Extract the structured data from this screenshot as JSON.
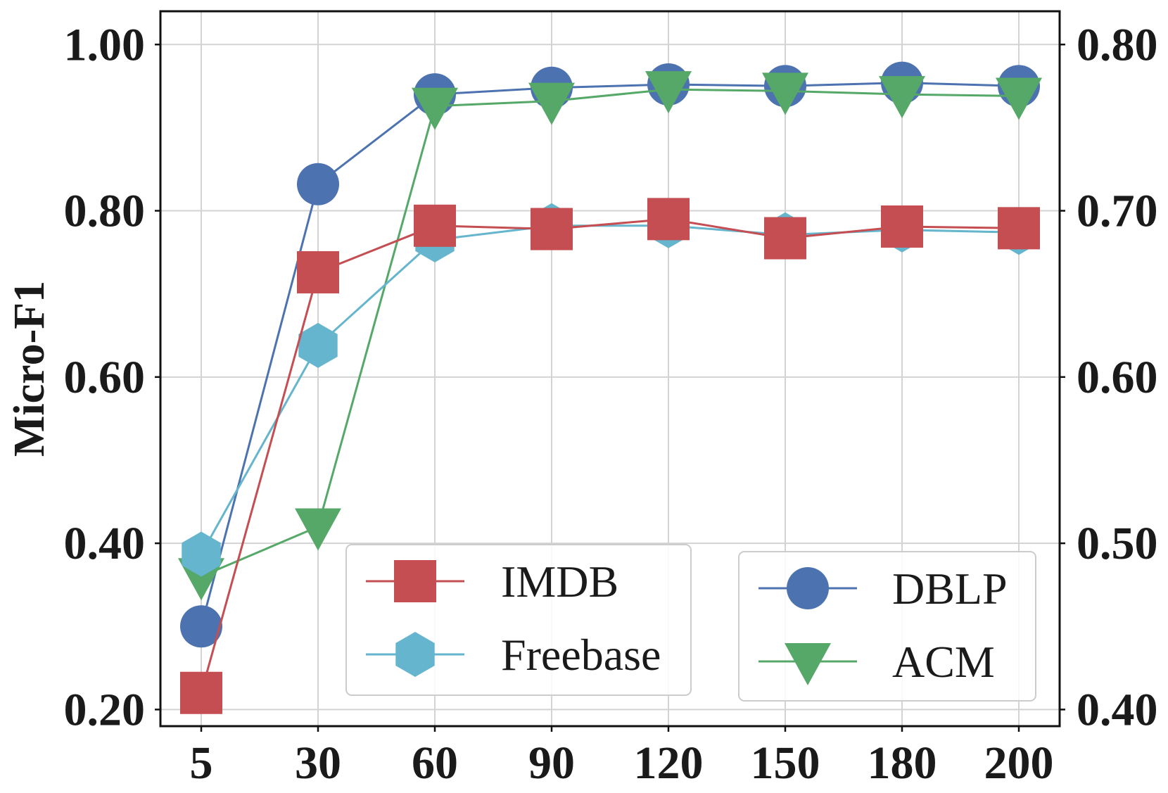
{
  "chart_data": {
    "type": "line",
    "categories": [
      "5",
      "30",
      "60",
      "90",
      "120",
      "150",
      "180",
      "200"
    ],
    "ylabel": "Micro-F1",
    "ylim_left": [
      0.18,
      1.04
    ],
    "ylim_right": [
      0.39,
      0.82
    ],
    "yticks_left": [
      "0.20",
      "0.40",
      "0.60",
      "0.80",
      "1.00"
    ],
    "yticks_right": [
      "0.40",
      "0.50",
      "0.60",
      "0.70",
      "0.80"
    ],
    "grid": true,
    "series": [
      {
        "name": "IMDB",
        "axis": "left",
        "color": "#c44e52",
        "marker": "square",
        "values": [
          0.22,
          0.726,
          0.782,
          0.778,
          0.79,
          0.767,
          0.781,
          0.779
        ]
      },
      {
        "name": "Freebase",
        "axis": "left",
        "color": "#64b5cd",
        "marker": "hexagon",
        "values": [
          0.387,
          0.638,
          0.765,
          0.782,
          0.782,
          0.771,
          0.777,
          0.774
        ]
      },
      {
        "name": "DBLP",
        "axis": "right",
        "color": "#4c72b0",
        "marker": "circle",
        "values": [
          0.45,
          0.716,
          0.77,
          0.774,
          0.776,
          0.775,
          0.777,
          0.775
        ]
      },
      {
        "name": "ACM",
        "axis": "right",
        "color": "#55a868",
        "marker": "triangle-down",
        "values": [
          0.48,
          0.51,
          0.763,
          0.766,
          0.773,
          0.772,
          0.77,
          0.769
        ]
      }
    ],
    "legends": [
      {
        "position": "lower-center",
        "entries": [
          "IMDB",
          "Freebase"
        ]
      },
      {
        "position": "lower-right",
        "entries": [
          "DBLP",
          "ACM"
        ]
      }
    ]
  }
}
